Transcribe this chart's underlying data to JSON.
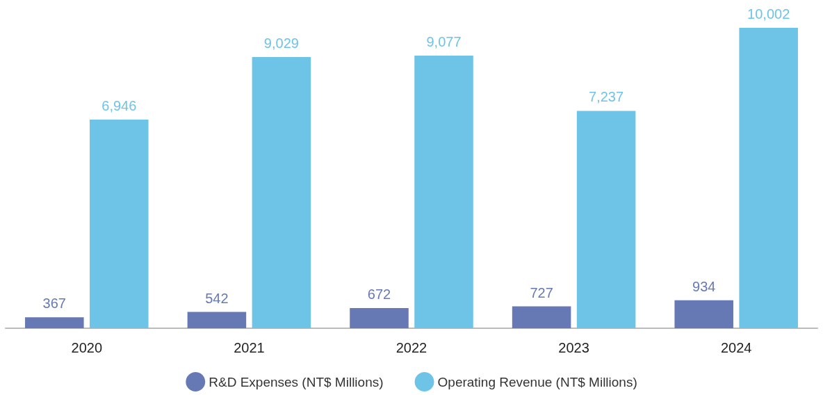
{
  "chart_data": {
    "type": "bar",
    "categories": [
      "2020",
      "2021",
      "2022",
      "2023",
      "2024"
    ],
    "series": [
      {
        "name": "R&D Expenses (NT$ Millions)",
        "color": "#6779b5",
        "values": [
          367,
          542,
          672,
          727,
          934
        ],
        "value_labels": [
          "367",
          "542",
          "672",
          "727",
          "934"
        ]
      },
      {
        "name": "Operating Revenue (NT$ Millions)",
        "color": "#6ec4e6",
        "values": [
          6946,
          9029,
          9077,
          7237,
          10002
        ],
        "value_labels": [
          "6,946",
          "9,029",
          "9,077",
          "7,237",
          "10,002"
        ]
      }
    ],
    "legend": "bottom"
  }
}
